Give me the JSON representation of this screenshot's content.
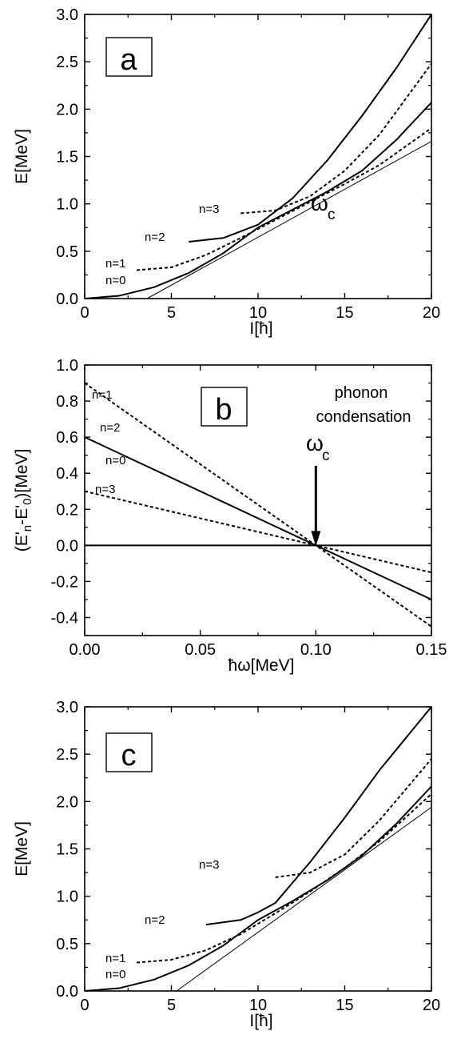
{
  "chart_data": [
    {
      "panel": "a",
      "type": "line",
      "xlabel": "I[ħ]",
      "ylabel": "E[MeV]",
      "xlim": [
        0,
        20
      ],
      "ylim": [
        0,
        3
      ],
      "xticks": [
        0,
        5,
        10,
        15,
        20
      ],
      "yticks": [
        0.0,
        0.5,
        1.0,
        1.5,
        2.0,
        2.5,
        3.0
      ],
      "panel_label": "a",
      "omega_label": "ω",
      "omega_sub": "c",
      "curve_labels": [
        "n=0",
        "n=1",
        "n=2",
        "n=3"
      ],
      "series": [
        {
          "label": "n=0",
          "style": "solid",
          "x": [
            0,
            2,
            4,
            6,
            8,
            10,
            12,
            14,
            16,
            18,
            20
          ],
          "y": [
            0.0,
            0.03,
            0.12,
            0.27,
            0.48,
            0.75,
            0.94,
            1.13,
            1.35,
            1.68,
            2.07
          ]
        },
        {
          "label": "n=1",
          "style": "dashed",
          "x": [
            3,
            5,
            7,
            9,
            11,
            13,
            15,
            17,
            20
          ],
          "y": [
            0.3,
            0.33,
            0.46,
            0.64,
            0.83,
            1.02,
            1.21,
            1.41,
            1.8
          ]
        },
        {
          "label": "n=2",
          "style": "solid",
          "x": [
            6,
            8,
            10,
            12,
            14,
            16,
            18,
            20
          ],
          "y": [
            0.6,
            0.64,
            0.78,
            1.06,
            1.46,
            1.93,
            2.44,
            3.0
          ]
        },
        {
          "label": "n=3",
          "style": "dashed",
          "x": [
            9,
            11,
            13,
            15,
            17,
            20
          ],
          "y": [
            0.9,
            0.93,
            1.08,
            1.35,
            1.73,
            2.48
          ]
        },
        {
          "label": "tangent",
          "style": "thin",
          "x": [
            3.6,
            20
          ],
          "y": [
            0.0,
            1.66
          ]
        }
      ]
    },
    {
      "panel": "b",
      "type": "line",
      "xlabel": "ħω[MeV]",
      "ylabel": "(E'n-E'0)[MeV]",
      "ylabel_parts": [
        "(E'",
        "n",
        "-E'",
        "0",
        ")[MeV]"
      ],
      "xlim": [
        0,
        0.15
      ],
      "ylim": [
        -0.5,
        1.0
      ],
      "xticks": [
        "0.00",
        "0.05",
        "0.10",
        "0.15"
      ],
      "yticks": [
        "-0.4",
        "-0.2",
        "0.0",
        "0.2",
        "0.4",
        "0.6",
        "0.8",
        "1.0"
      ],
      "panel_label": "b",
      "annotation_line1": "phonon",
      "annotation_line2": "condensation",
      "omega_label": "ω",
      "omega_sub": "c",
      "arrow_x": 0.1,
      "curve_labels": [
        "n=0",
        "n=1",
        "n=2",
        "n=3"
      ],
      "series": [
        {
          "label": "n=0",
          "style": "solid",
          "x": [
            0,
            0.15
          ],
          "y": [
            0.0,
            0.0
          ]
        },
        {
          "label": "n=1",
          "style": "dashed",
          "x": [
            0,
            0.15
          ],
          "y": [
            0.3,
            -0.15
          ]
        },
        {
          "label": "n=2",
          "style": "solid",
          "x": [
            0,
            0.15
          ],
          "y": [
            0.6,
            -0.3
          ]
        },
        {
          "label": "n=3",
          "style": "dashed",
          "x": [
            0,
            0.15
          ],
          "y": [
            0.9,
            -0.45
          ]
        }
      ]
    },
    {
      "panel": "c",
      "type": "line",
      "xlabel": "I[ħ]",
      "ylabel": "E[MeV]",
      "xlim": [
        0,
        20
      ],
      "ylim": [
        0,
        3
      ],
      "xticks": [
        0,
        5,
        10,
        15,
        20
      ],
      "yticks": [
        0.0,
        0.5,
        1.0,
        1.5,
        2.0,
        2.5,
        3.0
      ],
      "panel_label": "c",
      "curve_labels": [
        "n=0",
        "n=1",
        "n=2",
        "n=3"
      ],
      "series": [
        {
          "label": "n=0",
          "style": "solid",
          "x": [
            0,
            2,
            4,
            6,
            8,
            10,
            12,
            14,
            16,
            18,
            20
          ],
          "y": [
            0.0,
            0.03,
            0.12,
            0.27,
            0.48,
            0.75,
            0.95,
            1.17,
            1.43,
            1.77,
            2.16
          ]
        },
        {
          "label": "n=1",
          "style": "dashed",
          "x": [
            3,
            5,
            7,
            9,
            11,
            13,
            15,
            17,
            20
          ],
          "y": [
            0.3,
            0.33,
            0.43,
            0.6,
            0.82,
            1.05,
            1.3,
            1.58,
            2.08
          ]
        },
        {
          "label": "n=2",
          "style": "solid",
          "x": [
            7,
            9,
            10,
            11,
            13,
            15,
            17,
            20
          ],
          "y": [
            0.7,
            0.75,
            0.83,
            0.93,
            1.36,
            1.83,
            2.33,
            3.0
          ]
        },
        {
          "label": "n=3",
          "style": "dashed",
          "x": [
            11,
            13,
            15,
            17,
            20
          ],
          "y": [
            1.2,
            1.25,
            1.44,
            1.8,
            2.45
          ]
        },
        {
          "label": "tangent",
          "style": "thin",
          "x": [
            5.3,
            20
          ],
          "y": [
            0.0,
            1.94
          ]
        }
      ]
    }
  ]
}
